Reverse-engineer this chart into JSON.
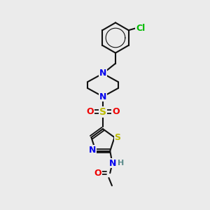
{
  "bg": "#ebebeb",
  "colors": {
    "bond": "#111111",
    "N": "#0000ee",
    "S": "#bbbb00",
    "O": "#ee0000",
    "Cl": "#00bb00",
    "H": "#5a8a8a"
  },
  "lw": 1.5,
  "figsize": [
    3.0,
    3.0
  ],
  "dpi": 100
}
